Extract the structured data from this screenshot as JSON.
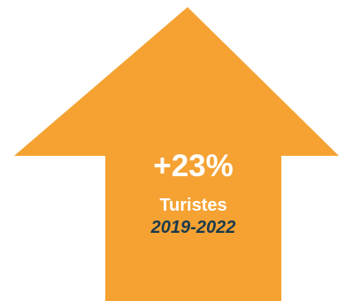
{
  "graphic": {
    "arrow_color": "#f5a233",
    "percent": "+23%",
    "subtitle": "Turistes",
    "period": "2019-2022",
    "percent_color": "#ffffff",
    "subtitle_color": "#ffffff",
    "period_color": "#1b3a4b"
  }
}
